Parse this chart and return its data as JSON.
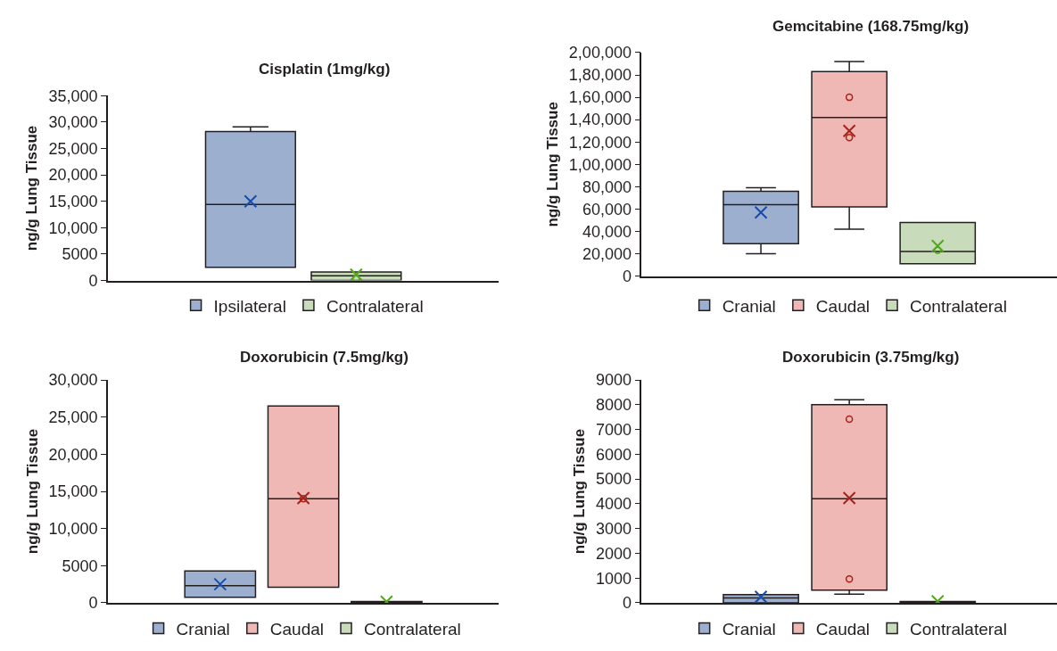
{
  "chart_data": [
    {
      "type": "box",
      "title": "Cisplatin (1mg/kg)",
      "ylabel": "ng/g Lung Tissue",
      "categories": [
        null
      ],
      "ylim": [
        0,
        35000
      ],
      "yticks": [
        0,
        5000,
        {
          "value": 10000,
          "label": "10,000"
        },
        {
          "value": 15000,
          "label": "15,000"
        },
        {
          "value": 20000,
          "label": "20,000"
        },
        {
          "value": 25000,
          "label": "25,000"
        },
        {
          "value": 30000,
          "label": "30,000"
        },
        {
          "value": 35000,
          "label": "35,000"
        }
      ],
      "legend": "bottom",
      "marker": "cross",
      "series": [
        {
          "name": "Ipsilateral",
          "color": "#9dafcf",
          "boxes": [
            {
              "low": 2500,
              "q1": 2500,
              "median": 14400,
              "q3": 28200,
              "high": 29100,
              "mean": 15000
            }
          ]
        },
        {
          "name": "Contralateral",
          "color": "#c8dcbb",
          "boxes": [
            {
              "low": 0,
              "q1": 0,
              "median": 900,
              "q3": 1600,
              "high": 1600,
              "mean": 1100,
              "outliers": [
                400
              ]
            }
          ]
        }
      ]
    },
    {
      "type": "box",
      "title": "Gemcitabine (168.75mg/kg)",
      "ylabel": "ng/g Lung Tissue",
      "categories": [
        null
      ],
      "ylim": [
        0,
        200000
      ],
      "yticks": [
        0,
        {
          "value": 20000,
          "label": "20,000"
        },
        {
          "value": 40000,
          "label": "40,000"
        },
        {
          "value": 60000,
          "label": "60,000"
        },
        {
          "value": 80000,
          "label": "80,000"
        },
        {
          "value": 100000,
          "label": "1,00,000"
        },
        {
          "value": 120000,
          "label": "1,20,000"
        },
        {
          "value": 140000,
          "label": "1,40,000"
        },
        {
          "value": 160000,
          "label": "1,60,000"
        },
        {
          "value": 180000,
          "label": "1,80,000"
        },
        {
          "value": 200000,
          "label": "2,00,000"
        }
      ],
      "legend": "bottom",
      "marker": "cross",
      "series": [
        {
          "name": "Cranial",
          "color": "#9dafcf",
          "boxes": [
            {
              "low": 20000,
              "q1": 29000,
              "median": 64000,
              "q3": 76000,
              "high": 79000,
              "mean": 57000
            }
          ]
        },
        {
          "name": "Caudal",
          "color": "#efb8b4",
          "boxes": [
            {
              "low": 42000,
              "q1": 62000,
              "median": 142000,
              "q3": 183000,
              "high": 192000,
              "mean": 130000,
              "outliers": [
                160000,
                124000
              ]
            }
          ]
        },
        {
          "name": "Contralateral",
          "color": "#c8dcbb",
          "boxes": [
            {
              "low": 11000,
              "q1": 11000,
              "median": 22000,
              "q3": 48000,
              "high": 48000,
              "mean": 27000,
              "outliers": [
                23000
              ]
            }
          ]
        }
      ]
    },
    {
      "type": "box",
      "title": "Doxorubicin (7.5mg/kg)",
      "ylabel": "ng/g Lung Tissue",
      "categories": [
        null
      ],
      "ylim": [
        0,
        30000
      ],
      "yticks": [
        0,
        5000,
        {
          "value": 10000,
          "label": "10,000"
        },
        {
          "value": 15000,
          "label": "15,000"
        },
        {
          "value": 20000,
          "label": "20,000"
        },
        {
          "value": 25000,
          "label": "25,000"
        },
        {
          "value": 30000,
          "label": "30,000"
        }
      ],
      "legend": "bottom",
      "marker": "cross",
      "series": [
        {
          "name": "Cranial",
          "color": "#9dafcf",
          "boxes": [
            {
              "low": 750,
              "q1": 750,
              "median": 2300,
              "q3": 4300,
              "high": 4300,
              "mean": 2500
            }
          ]
        },
        {
          "name": "Caudal",
          "color": "#efb8b4",
          "boxes": [
            {
              "low": 2100,
              "q1": 2100,
              "median": 14000,
              "q3": 26500,
              "high": 26500,
              "mean": 14100,
              "outliers": [
                14000
              ]
            }
          ]
        },
        {
          "name": "Contralateral",
          "color": "#c8dcbb",
          "boxes": [
            {
              "low": 0,
              "q1": 50,
              "median": 100,
              "q3": 170,
              "high": 170,
              "mean": 150
            }
          ]
        }
      ]
    },
    {
      "type": "box",
      "title": "Doxorubicin (3.75mg/kg)",
      "ylabel": "ng/g Lung Tissue",
      "categories": [
        null
      ],
      "ylim": [
        0,
        9000
      ],
      "yticks": [
        0,
        1000,
        2000,
        3000,
        4000,
        5000,
        6000,
        7000,
        8000,
        9000
      ],
      "legend": "bottom",
      "marker": "cross",
      "series": [
        {
          "name": "Cranial",
          "color": "#9dafcf",
          "boxes": [
            {
              "low": 0,
              "q1": 0,
              "median": 200,
              "q3": 330,
              "high": 330,
              "mean": 240
            }
          ]
        },
        {
          "name": "Caudal",
          "color": "#efb8b4",
          "boxes": [
            {
              "low": 350,
              "q1": 510,
              "median": 4200,
              "q3": 8000,
              "high": 8200,
              "mean": 4230,
              "outliers": [
                7420,
                960
              ]
            }
          ]
        },
        {
          "name": "Contralateral",
          "color": "#c8dcbb",
          "boxes": [
            {
              "low": 0,
              "q1": 0,
              "median": 30,
              "q3": 50,
              "high": 50,
              "mean": 60
            }
          ]
        }
      ]
    }
  ]
}
